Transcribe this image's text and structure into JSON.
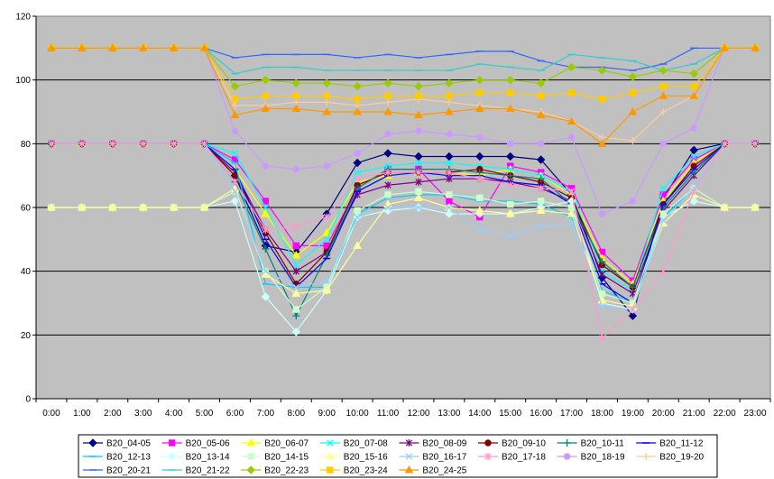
{
  "chart_data": {
    "type": "line",
    "title": "",
    "xlabel": "",
    "ylabel": "",
    "ylim": [
      0,
      120
    ],
    "yticks": [
      0,
      20,
      40,
      60,
      80,
      100,
      120
    ],
    "grid": "horizontal",
    "legend_position": "bottom",
    "plot_background": "#c0c0c0",
    "categories": [
      "0:00",
      "1:00",
      "2:00",
      "3:00",
      "4:00",
      "5:00",
      "6:00",
      "7:00",
      "8:00",
      "9:00",
      "10:00",
      "11:00",
      "12:00",
      "13:00",
      "14:00",
      "15:00",
      "16:00",
      "17:00",
      "18:00",
      "19:00",
      "20:00",
      "21:00",
      "22:00",
      "23:00"
    ],
    "series": [
      {
        "name": "B20_04-05",
        "color": "#000080",
        "marker": "diamond",
        "values": [
          80,
          80,
          80,
          80,
          80,
          80,
          70,
          48,
          46,
          58,
          74,
          77,
          76,
          76,
          76,
          76,
          75,
          64,
          38,
          26,
          63,
          78,
          80,
          80
        ]
      },
      {
        "name": "B20_05-06",
        "color": "#ff00ff",
        "marker": "square",
        "values": [
          80,
          80,
          80,
          80,
          80,
          80,
          75,
          62,
          48,
          48,
          66,
          72,
          72,
          62,
          57,
          73,
          71,
          66,
          46,
          37,
          64,
          75,
          80,
          80
        ]
      },
      {
        "name": "B20_06-07",
        "color": "#ffff00",
        "marker": "triangle",
        "values": [
          80,
          80,
          80,
          80,
          80,
          80,
          72,
          58,
          45,
          52,
          68,
          70,
          71,
          71,
          70,
          72,
          70,
          64,
          44,
          36,
          62,
          74,
          80,
          80
        ]
      },
      {
        "name": "B20_07-08",
        "color": "#00ffff",
        "marker": "x",
        "values": [
          80,
          80,
          80,
          80,
          80,
          80,
          77,
          60,
          42,
          50,
          71,
          73,
          74,
          74,
          73,
          72,
          70,
          65,
          40,
          34,
          66,
          76,
          80,
          80
        ]
      },
      {
        "name": "B20_08-09",
        "color": "#800080",
        "marker": "star",
        "values": [
          80,
          80,
          80,
          80,
          80,
          80,
          71,
          53,
          40,
          46,
          64,
          67,
          68,
          69,
          69,
          68,
          66,
          62,
          39,
          33,
          59,
          70,
          80,
          80
        ]
      },
      {
        "name": "B20_09-10",
        "color": "#800000",
        "marker": "circle",
        "values": [
          80,
          80,
          80,
          80,
          80,
          80,
          70,
          52,
          36,
          46,
          67,
          71,
          71,
          71,
          72,
          70,
          68,
          63,
          42,
          35,
          61,
          73,
          80,
          80
        ]
      },
      {
        "name": "B20_10-11",
        "color": "#008080",
        "marker": "plus",
        "values": [
          80,
          80,
          80,
          80,
          80,
          80,
          68,
          47,
          26,
          45,
          66,
          72,
          72,
          72,
          71,
          70,
          69,
          61,
          43,
          35,
          60,
          71,
          80,
          80
        ]
      },
      {
        "name": "B20_11-12",
        "color": "#0000ff",
        "marker": "dash",
        "values": [
          80,
          80,
          80,
          80,
          80,
          80,
          72,
          50,
          35,
          44,
          65,
          70,
          71,
          70,
          70,
          68,
          67,
          61,
          36,
          30,
          61,
          72,
          80,
          80
        ]
      },
      {
        "name": "B20_12-13",
        "color": "#00ccff",
        "marker": "dash",
        "values": [
          80,
          80,
          80,
          80,
          80,
          80,
          74,
          36,
          35,
          35,
          58,
          63,
          64,
          64,
          62,
          62,
          61,
          57,
          34,
          30,
          57,
          66,
          80,
          80
        ]
      },
      {
        "name": "B20_13-14",
        "color": "#ccffff",
        "marker": "diamond",
        "values": [
          60,
          60,
          60,
          60,
          60,
          60,
          62,
          32,
          21,
          34,
          57,
          59,
          60,
          58,
          58,
          58,
          60,
          62,
          30,
          28,
          57,
          62,
          60,
          60
        ]
      },
      {
        "name": "B20_14-15",
        "color": "#ccffcc",
        "marker": "square",
        "values": [
          60,
          60,
          60,
          60,
          60,
          60,
          65,
          40,
          28,
          35,
          59,
          64,
          65,
          64,
          63,
          61,
          62,
          60,
          33,
          30,
          58,
          66,
          60,
          60
        ]
      },
      {
        "name": "B20_15-16",
        "color": "#ffff99",
        "marker": "triangle",
        "values": [
          60,
          60,
          60,
          60,
          60,
          60,
          66,
          39,
          33,
          34,
          48,
          61,
          63,
          60,
          59,
          58,
          59,
          58,
          31,
          29,
          55,
          64,
          60,
          60
        ]
      },
      {
        "name": "B20_16-17",
        "color": "#99ccff",
        "marker": "x",
        "values": [
          80,
          80,
          80,
          80,
          80,
          80,
          65,
          40,
          35,
          37,
          57,
          60,
          60,
          60,
          53,
          51,
          54,
          55,
          29,
          28,
          56,
          66,
          80,
          80
        ]
      },
      {
        "name": "B20_17-18",
        "color": "#ff99cc",
        "marker": "star",
        "values": [
          80,
          80,
          80,
          80,
          80,
          80,
          68,
          53,
          54,
          57,
          69,
          71,
          71,
          71,
          69,
          67,
          66,
          65,
          19,
          28,
          40,
          65,
          80,
          80
        ]
      },
      {
        "name": "B20_18-19",
        "color": "#cc99ff",
        "marker": "circle",
        "values": [
          110,
          110,
          110,
          110,
          110,
          110,
          84,
          73,
          72,
          73,
          77,
          83,
          84,
          83,
          82,
          80,
          80,
          82,
          58,
          62,
          80,
          85,
          110,
          110
        ]
      },
      {
        "name": "B20_19-20",
        "color": "#ffcc99",
        "marker": "plus",
        "values": [
          110,
          110,
          110,
          110,
          110,
          110,
          92,
          92,
          93,
          93,
          92,
          93,
          94,
          93,
          92,
          91,
          90,
          87,
          82,
          81,
          90,
          95,
          110,
          110
        ]
      },
      {
        "name": "B20_20-21",
        "color": "#3366ff",
        "marker": "dash",
        "values": [
          110,
          110,
          110,
          110,
          110,
          110,
          107,
          108,
          108,
          108,
          107,
          108,
          107,
          108,
          109,
          109,
          106,
          104,
          104,
          103,
          105,
          110,
          110,
          110
        ]
      },
      {
        "name": "B20_21-22",
        "color": "#33cccc",
        "marker": "dash",
        "values": [
          110,
          110,
          110,
          110,
          110,
          110,
          102,
          104,
          104,
          103,
          103,
          103,
          103,
          103,
          105,
          104,
          103,
          108,
          107,
          106,
          103,
          105,
          110,
          110
        ]
      },
      {
        "name": "B20_22-23",
        "color": "#99cc00",
        "marker": "diamond",
        "values": [
          110,
          110,
          110,
          110,
          110,
          110,
          98,
          100,
          99,
          99,
          98,
          99,
          98,
          99,
          100,
          100,
          99,
          104,
          103,
          101,
          103,
          102,
          110,
          110
        ]
      },
      {
        "name": "B20_23-24",
        "color": "#ffcc00",
        "marker": "square",
        "values": [
          110,
          110,
          110,
          110,
          110,
          110,
          94,
          95,
          95,
          95,
          94,
          95,
          95,
          95,
          96,
          96,
          95,
          96,
          94,
          96,
          98,
          98,
          110,
          110
        ]
      },
      {
        "name": "B20_24-25",
        "color": "#ff9900",
        "marker": "triangle",
        "values": [
          110,
          110,
          110,
          110,
          110,
          110,
          89,
          91,
          91,
          90,
          90,
          90,
          89,
          90,
          91,
          91,
          89,
          87,
          80,
          90,
          95,
          95,
          110,
          110
        ]
      }
    ]
  }
}
